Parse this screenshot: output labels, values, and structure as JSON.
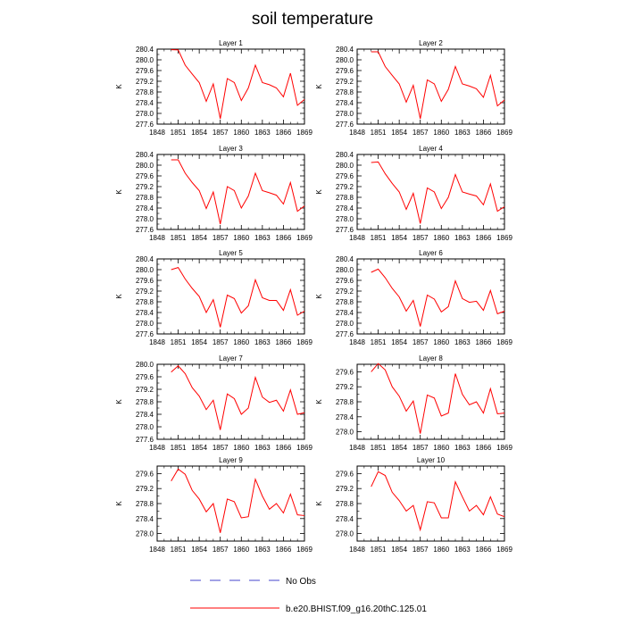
{
  "title": "soil temperature",
  "colors": {
    "model": "#ff0000",
    "obs": "#4444cc",
    "axis": "#000000"
  },
  "legend": [
    {
      "label": "No Obs",
      "style": "dashed",
      "color": "#4444cc"
    },
    {
      "label": "b.e20.BHIST.f09_g16.20thC.125.01",
      "style": "solid",
      "color": "#ff0000"
    }
  ],
  "chart_data": [
    {
      "type": "line",
      "title": "Layer 1",
      "ylabel": "K",
      "xlim": [
        1848,
        1869
      ],
      "ylim": [
        277.6,
        280.4
      ],
      "xticks": [
        1848,
        1851,
        1854,
        1857,
        1860,
        1863,
        1866,
        1869
      ],
      "yticks": [
        277.6,
        278.0,
        278.4,
        278.8,
        279.2,
        279.6,
        280.0,
        280.4
      ],
      "x": [
        1850,
        1851,
        1852,
        1853,
        1854,
        1855,
        1856,
        1857,
        1858,
        1859,
        1860,
        1861,
        1862,
        1863,
        1864,
        1865,
        1866,
        1867,
        1868,
        1869
      ],
      "series": [
        {
          "values": [
            280.38,
            280.37,
            279.8,
            279.47,
            279.15,
            278.45,
            279.1,
            277.8,
            279.3,
            279.15,
            278.48,
            278.95,
            279.8,
            279.15,
            279.07,
            278.95,
            278.62,
            279.5,
            278.3,
            278.52
          ]
        }
      ]
    },
    {
      "type": "line",
      "title": "Layer 2",
      "ylabel": "K",
      "xlim": [
        1848,
        1869
      ],
      "ylim": [
        277.6,
        280.4
      ],
      "xticks": [
        1848,
        1851,
        1854,
        1857,
        1860,
        1863,
        1866,
        1869
      ],
      "yticks": [
        277.6,
        278.0,
        278.4,
        278.8,
        279.2,
        279.6,
        280.0,
        280.4
      ],
      "x": [
        1850,
        1851,
        1852,
        1853,
        1854,
        1855,
        1856,
        1857,
        1858,
        1859,
        1860,
        1861,
        1862,
        1863,
        1864,
        1865,
        1866,
        1867,
        1868,
        1869
      ],
      "series": [
        {
          "values": [
            280.3,
            280.3,
            279.75,
            279.42,
            279.1,
            278.42,
            279.05,
            277.8,
            279.25,
            279.1,
            278.45,
            278.9,
            279.75,
            279.1,
            279.02,
            278.92,
            278.6,
            279.42,
            278.28,
            278.5
          ]
        }
      ]
    },
    {
      "type": "line",
      "title": "Layer 3",
      "ylabel": "K",
      "xlim": [
        1848,
        1869
      ],
      "ylim": [
        277.6,
        280.4
      ],
      "xticks": [
        1848,
        1851,
        1854,
        1857,
        1860,
        1863,
        1866,
        1869
      ],
      "yticks": [
        277.6,
        278.0,
        278.4,
        278.8,
        279.2,
        279.6,
        280.0,
        280.4
      ],
      "x": [
        1850,
        1851,
        1852,
        1853,
        1854,
        1855,
        1856,
        1857,
        1858,
        1859,
        1860,
        1861,
        1862,
        1863,
        1864,
        1865,
        1866,
        1867,
        1868,
        1869
      ],
      "series": [
        {
          "values": [
            280.2,
            280.2,
            279.7,
            279.35,
            279.05,
            278.38,
            279.0,
            277.8,
            279.2,
            279.05,
            278.4,
            278.85,
            279.7,
            279.05,
            278.97,
            278.88,
            278.55,
            279.35,
            278.28,
            278.48
          ]
        }
      ]
    },
    {
      "type": "line",
      "title": "Layer 4",
      "ylabel": "K",
      "xlim": [
        1848,
        1869
      ],
      "ylim": [
        277.6,
        280.4
      ],
      "xticks": [
        1848,
        1851,
        1854,
        1857,
        1860,
        1863,
        1866,
        1869
      ],
      "yticks": [
        277.6,
        278.0,
        278.4,
        278.8,
        279.2,
        279.6,
        280.0,
        280.4
      ],
      "x": [
        1850,
        1851,
        1852,
        1853,
        1854,
        1855,
        1856,
        1857,
        1858,
        1859,
        1860,
        1861,
        1862,
        1863,
        1864,
        1865,
        1866,
        1867,
        1868,
        1869
      ],
      "series": [
        {
          "values": [
            280.1,
            280.12,
            279.68,
            279.32,
            279.0,
            278.35,
            278.95,
            277.82,
            279.15,
            279.0,
            278.38,
            278.8,
            279.65,
            279.0,
            278.92,
            278.85,
            278.52,
            279.3,
            278.28,
            278.45
          ]
        }
      ]
    },
    {
      "type": "line",
      "title": "Layer 5",
      "ylabel": "K",
      "xlim": [
        1848,
        1869
      ],
      "ylim": [
        277.6,
        280.4
      ],
      "xticks": [
        1848,
        1851,
        1854,
        1857,
        1860,
        1863,
        1866,
        1869
      ],
      "yticks": [
        277.6,
        278.0,
        278.4,
        278.8,
        279.2,
        279.6,
        280.0,
        280.4
      ],
      "x": [
        1850,
        1851,
        1852,
        1853,
        1854,
        1855,
        1856,
        1857,
        1858,
        1859,
        1860,
        1861,
        1862,
        1863,
        1864,
        1865,
        1866,
        1867,
        1868,
        1869
      ],
      "series": [
        {
          "values": [
            280.0,
            280.08,
            279.65,
            279.3,
            279.0,
            278.4,
            278.88,
            277.85,
            279.05,
            278.92,
            278.38,
            278.65,
            279.62,
            278.95,
            278.85,
            278.85,
            278.48,
            279.25,
            278.3,
            278.45
          ]
        }
      ]
    },
    {
      "type": "line",
      "title": "Layer 6",
      "ylabel": "K",
      "xlim": [
        1848,
        1869
      ],
      "ylim": [
        277.6,
        280.4
      ],
      "xticks": [
        1848,
        1851,
        1854,
        1857,
        1860,
        1863,
        1866,
        1869
      ],
      "yticks": [
        277.6,
        278.0,
        278.4,
        278.8,
        279.2,
        279.6,
        280.0,
        280.4
      ],
      "x": [
        1850,
        1851,
        1852,
        1853,
        1854,
        1855,
        1856,
        1857,
        1858,
        1859,
        1860,
        1861,
        1862,
        1863,
        1864,
        1865,
        1866,
        1867,
        1868,
        1869
      ],
      "series": [
        {
          "values": [
            279.9,
            280.02,
            279.7,
            279.3,
            278.98,
            278.45,
            278.85,
            277.88,
            279.05,
            278.9,
            278.42,
            278.62,
            279.58,
            278.92,
            278.78,
            278.82,
            278.48,
            279.22,
            278.35,
            278.45
          ]
        }
      ]
    },
    {
      "type": "line",
      "title": "Layer 7",
      "ylabel": "K",
      "xlim": [
        1848,
        1869
      ],
      "ylim": [
        277.6,
        280.0
      ],
      "xticks": [
        1848,
        1851,
        1854,
        1857,
        1860,
        1863,
        1866,
        1869
      ],
      "yticks": [
        277.6,
        278.0,
        278.4,
        278.8,
        279.2,
        279.6,
        280.0
      ],
      "x": [
        1850,
        1851,
        1852,
        1853,
        1854,
        1855,
        1856,
        1857,
        1858,
        1859,
        1860,
        1861,
        1862,
        1863,
        1864,
        1865,
        1866,
        1867,
        1868,
        1869
      ],
      "series": [
        {
          "values": [
            279.75,
            279.95,
            279.7,
            279.25,
            278.98,
            278.55,
            278.85,
            277.9,
            279.05,
            278.9,
            278.4,
            278.6,
            279.58,
            278.95,
            278.78,
            278.85,
            278.5,
            279.18,
            278.4,
            278.45
          ]
        }
      ]
    },
    {
      "type": "line",
      "title": "Layer 8",
      "ylabel": "K",
      "xlim": [
        1848,
        1869
      ],
      "ylim": [
        277.8,
        279.8
      ],
      "xticks": [
        1848,
        1851,
        1854,
        1857,
        1860,
        1863,
        1866,
        1869
      ],
      "yticks": [
        278.0,
        278.4,
        278.8,
        279.2,
        279.6
      ],
      "x": [
        1850,
        1851,
        1852,
        1853,
        1854,
        1855,
        1856,
        1857,
        1858,
        1859,
        1860,
        1861,
        1862,
        1863,
        1864,
        1865,
        1866,
        1867,
        1868,
        1869
      ],
      "series": [
        {
          "values": [
            279.6,
            279.82,
            279.65,
            279.2,
            278.95,
            278.55,
            278.82,
            277.95,
            278.98,
            278.9,
            278.42,
            278.5,
            279.55,
            279.0,
            278.72,
            278.8,
            278.5,
            279.15,
            278.48,
            278.5
          ]
        }
      ]
    },
    {
      "type": "line",
      "title": "Layer 9",
      "ylabel": "K",
      "xlim": [
        1848,
        1869
      ],
      "ylim": [
        277.8,
        279.8
      ],
      "xticks": [
        1848,
        1851,
        1854,
        1857,
        1860,
        1863,
        1866,
        1869
      ],
      "yticks": [
        278.0,
        278.4,
        278.8,
        279.2,
        279.6
      ],
      "x": [
        1850,
        1851,
        1852,
        1853,
        1854,
        1855,
        1856,
        1857,
        1858,
        1859,
        1860,
        1861,
        1862,
        1863,
        1864,
        1865,
        1866,
        1867,
        1868,
        1869
      ],
      "series": [
        {
          "values": [
            279.4,
            279.72,
            279.58,
            279.15,
            278.92,
            278.58,
            278.8,
            278.02,
            278.92,
            278.85,
            278.42,
            278.45,
            279.45,
            279.0,
            278.65,
            278.8,
            278.55,
            279.05,
            278.5,
            278.48
          ]
        }
      ]
    },
    {
      "type": "line",
      "title": "Layer 10",
      "ylabel": "K",
      "xlim": [
        1848,
        1869
      ],
      "ylim": [
        277.8,
        279.8
      ],
      "xticks": [
        1848,
        1851,
        1854,
        1857,
        1860,
        1863,
        1866,
        1869
      ],
      "yticks": [
        278.0,
        278.4,
        278.8,
        279.2,
        279.6
      ],
      "x": [
        1850,
        1851,
        1852,
        1853,
        1854,
        1855,
        1856,
        1857,
        1858,
        1859,
        1860,
        1861,
        1862,
        1863,
        1864,
        1865,
        1866,
        1867,
        1868,
        1869
      ],
      "series": [
        {
          "values": [
            279.25,
            279.65,
            279.55,
            279.1,
            278.88,
            278.6,
            278.75,
            278.1,
            278.85,
            278.82,
            278.42,
            278.42,
            279.38,
            278.98,
            278.6,
            278.75,
            278.5,
            278.98,
            278.52,
            278.45
          ]
        }
      ]
    }
  ]
}
